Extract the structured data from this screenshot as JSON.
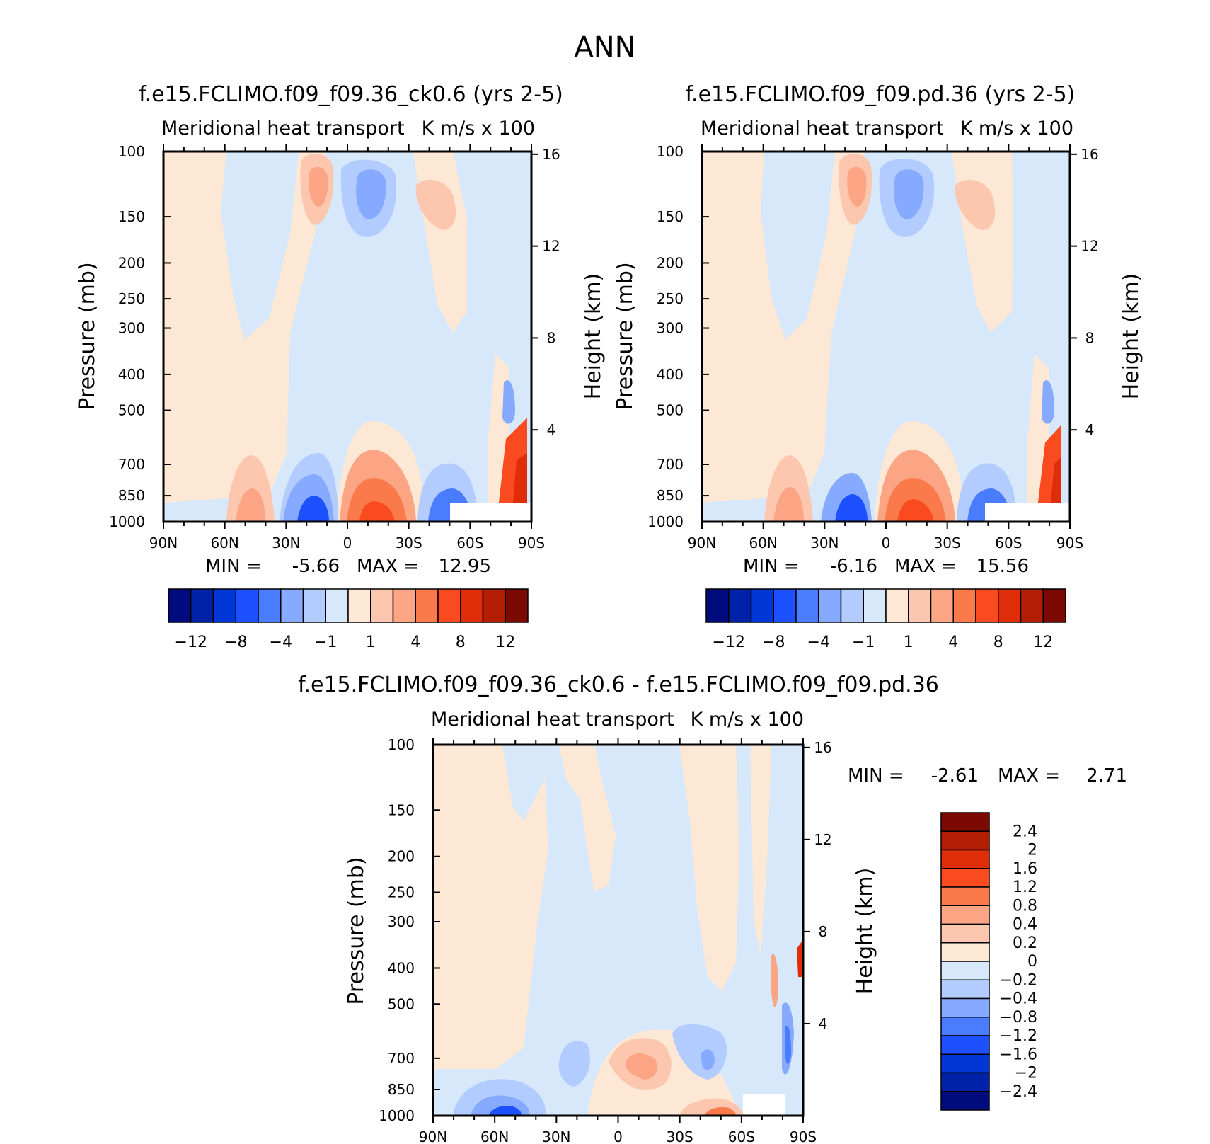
{
  "figure": {
    "title": "ANN"
  },
  "colors": {
    "main_levels": [
      "#000c7d",
      "#0022a8",
      "#0037d6",
      "#1d50ff",
      "#4a7cff",
      "#86aaff",
      "#b2ccff",
      "#d8e8fb",
      "#fde8d6",
      "#fcc7ae",
      "#fba585",
      "#fb7a4c",
      "#f94b1f",
      "#df2d0a",
      "#b41e05",
      "#7c0a02"
    ],
    "diff_levels": [
      "#000c7d",
      "#0022a8",
      "#0037d6",
      "#1d50ff",
      "#4a7cff",
      "#86aaff",
      "#b2ccff",
      "#d8e8fb",
      "#fde8d6",
      "#fcc7ae",
      "#fba585",
      "#fb7a4c",
      "#f94b1f",
      "#df2d0a",
      "#b41e05",
      "#7c0a02"
    ]
  },
  "chart_data": [
    {
      "type": "heatmap",
      "title": "f.e15.FCLIMO.f09_f09.36_ck0.6 (yrs 2-5)",
      "subtitle_left": "Meridional heat transport",
      "subtitle_right": "K m/s x 100",
      "xlabel": "",
      "ylabel": "Pressure (mb)",
      "y2label": "Height (km)",
      "x_ticks": [
        "90N",
        "60N",
        "30N",
        "0",
        "30S",
        "60S",
        "90S"
      ],
      "y_ticks": [
        "100",
        "150",
        "200",
        "250",
        "300",
        "400",
        "500",
        "700",
        "850",
        "1000"
      ],
      "y2_ticks": [
        "16",
        "12",
        "8",
        "4"
      ],
      "min_label": "MIN =",
      "min_value": "-5.66",
      "max_label": "MAX =",
      "max_value": "12.95",
      "colorbar_labels": [
        "-12",
        "-8",
        "-4",
        "-1",
        "1",
        "4",
        "8",
        "12"
      ],
      "colorbar_levels": [
        -12,
        -10,
        -8,
        -6,
        -4,
        -2,
        -1,
        0,
        1,
        2,
        4,
        6,
        8,
        10,
        12
      ]
    },
    {
      "type": "heatmap",
      "title": "f.e15.FCLIMO.f09_f09.pd.36 (yrs 2-5)",
      "subtitle_left": "Meridional heat transport",
      "subtitle_right": "K m/s x 100",
      "xlabel": "",
      "ylabel": "Pressure (mb)",
      "y2label": "Height (km)",
      "x_ticks": [
        "90N",
        "60N",
        "30N",
        "0",
        "30S",
        "60S",
        "90S"
      ],
      "y_ticks": [
        "100",
        "150",
        "200",
        "250",
        "300",
        "400",
        "500",
        "700",
        "850",
        "1000"
      ],
      "y2_ticks": [
        "16",
        "12",
        "8",
        "4"
      ],
      "min_label": "MIN =",
      "min_value": "-6.16",
      "max_label": "MAX =",
      "max_value": "15.56",
      "colorbar_labels": [
        "-12",
        "-8",
        "-4",
        "-1",
        "1",
        "4",
        "8",
        "12"
      ],
      "colorbar_levels": [
        -12,
        -10,
        -8,
        -6,
        -4,
        -2,
        -1,
        0,
        1,
        2,
        4,
        6,
        8,
        10,
        12
      ]
    },
    {
      "type": "heatmap",
      "title": "f.e15.FCLIMO.f09_f09.36_ck0.6 - f.e15.FCLIMO.f09_f09.pd.36",
      "subtitle_left": "Meridional heat transport",
      "subtitle_right": "K m/s x 100",
      "xlabel": "",
      "ylabel": "Pressure (mb)",
      "y2label": "Height (km)",
      "x_ticks": [
        "90N",
        "60N",
        "30N",
        "0",
        "30S",
        "60S",
        "90S"
      ],
      "y_ticks": [
        "100",
        "150",
        "200",
        "250",
        "300",
        "400",
        "500",
        "700",
        "850",
        "1000"
      ],
      "y2_ticks": [
        "16",
        "12",
        "8",
        "4"
      ],
      "min_label": "MIN =",
      "min_value": "-2.61",
      "max_label": "MAX =",
      "max_value": "2.71",
      "colorbar_labels": [
        "2.4",
        "2",
        "1.6",
        "1.2",
        "0.8",
        "0.4",
        "0.2",
        "0",
        "-0.2",
        "-0.4",
        "-0.8",
        "-1.2",
        "-1.6",
        "-2",
        "-2.4"
      ],
      "colorbar_levels": [
        2.4,
        2,
        1.6,
        1.2,
        0.8,
        0.4,
        0.2,
        0,
        -0.2,
        -0.4,
        -0.8,
        -1.2,
        -1.6,
        -2,
        -2.4
      ]
    }
  ]
}
